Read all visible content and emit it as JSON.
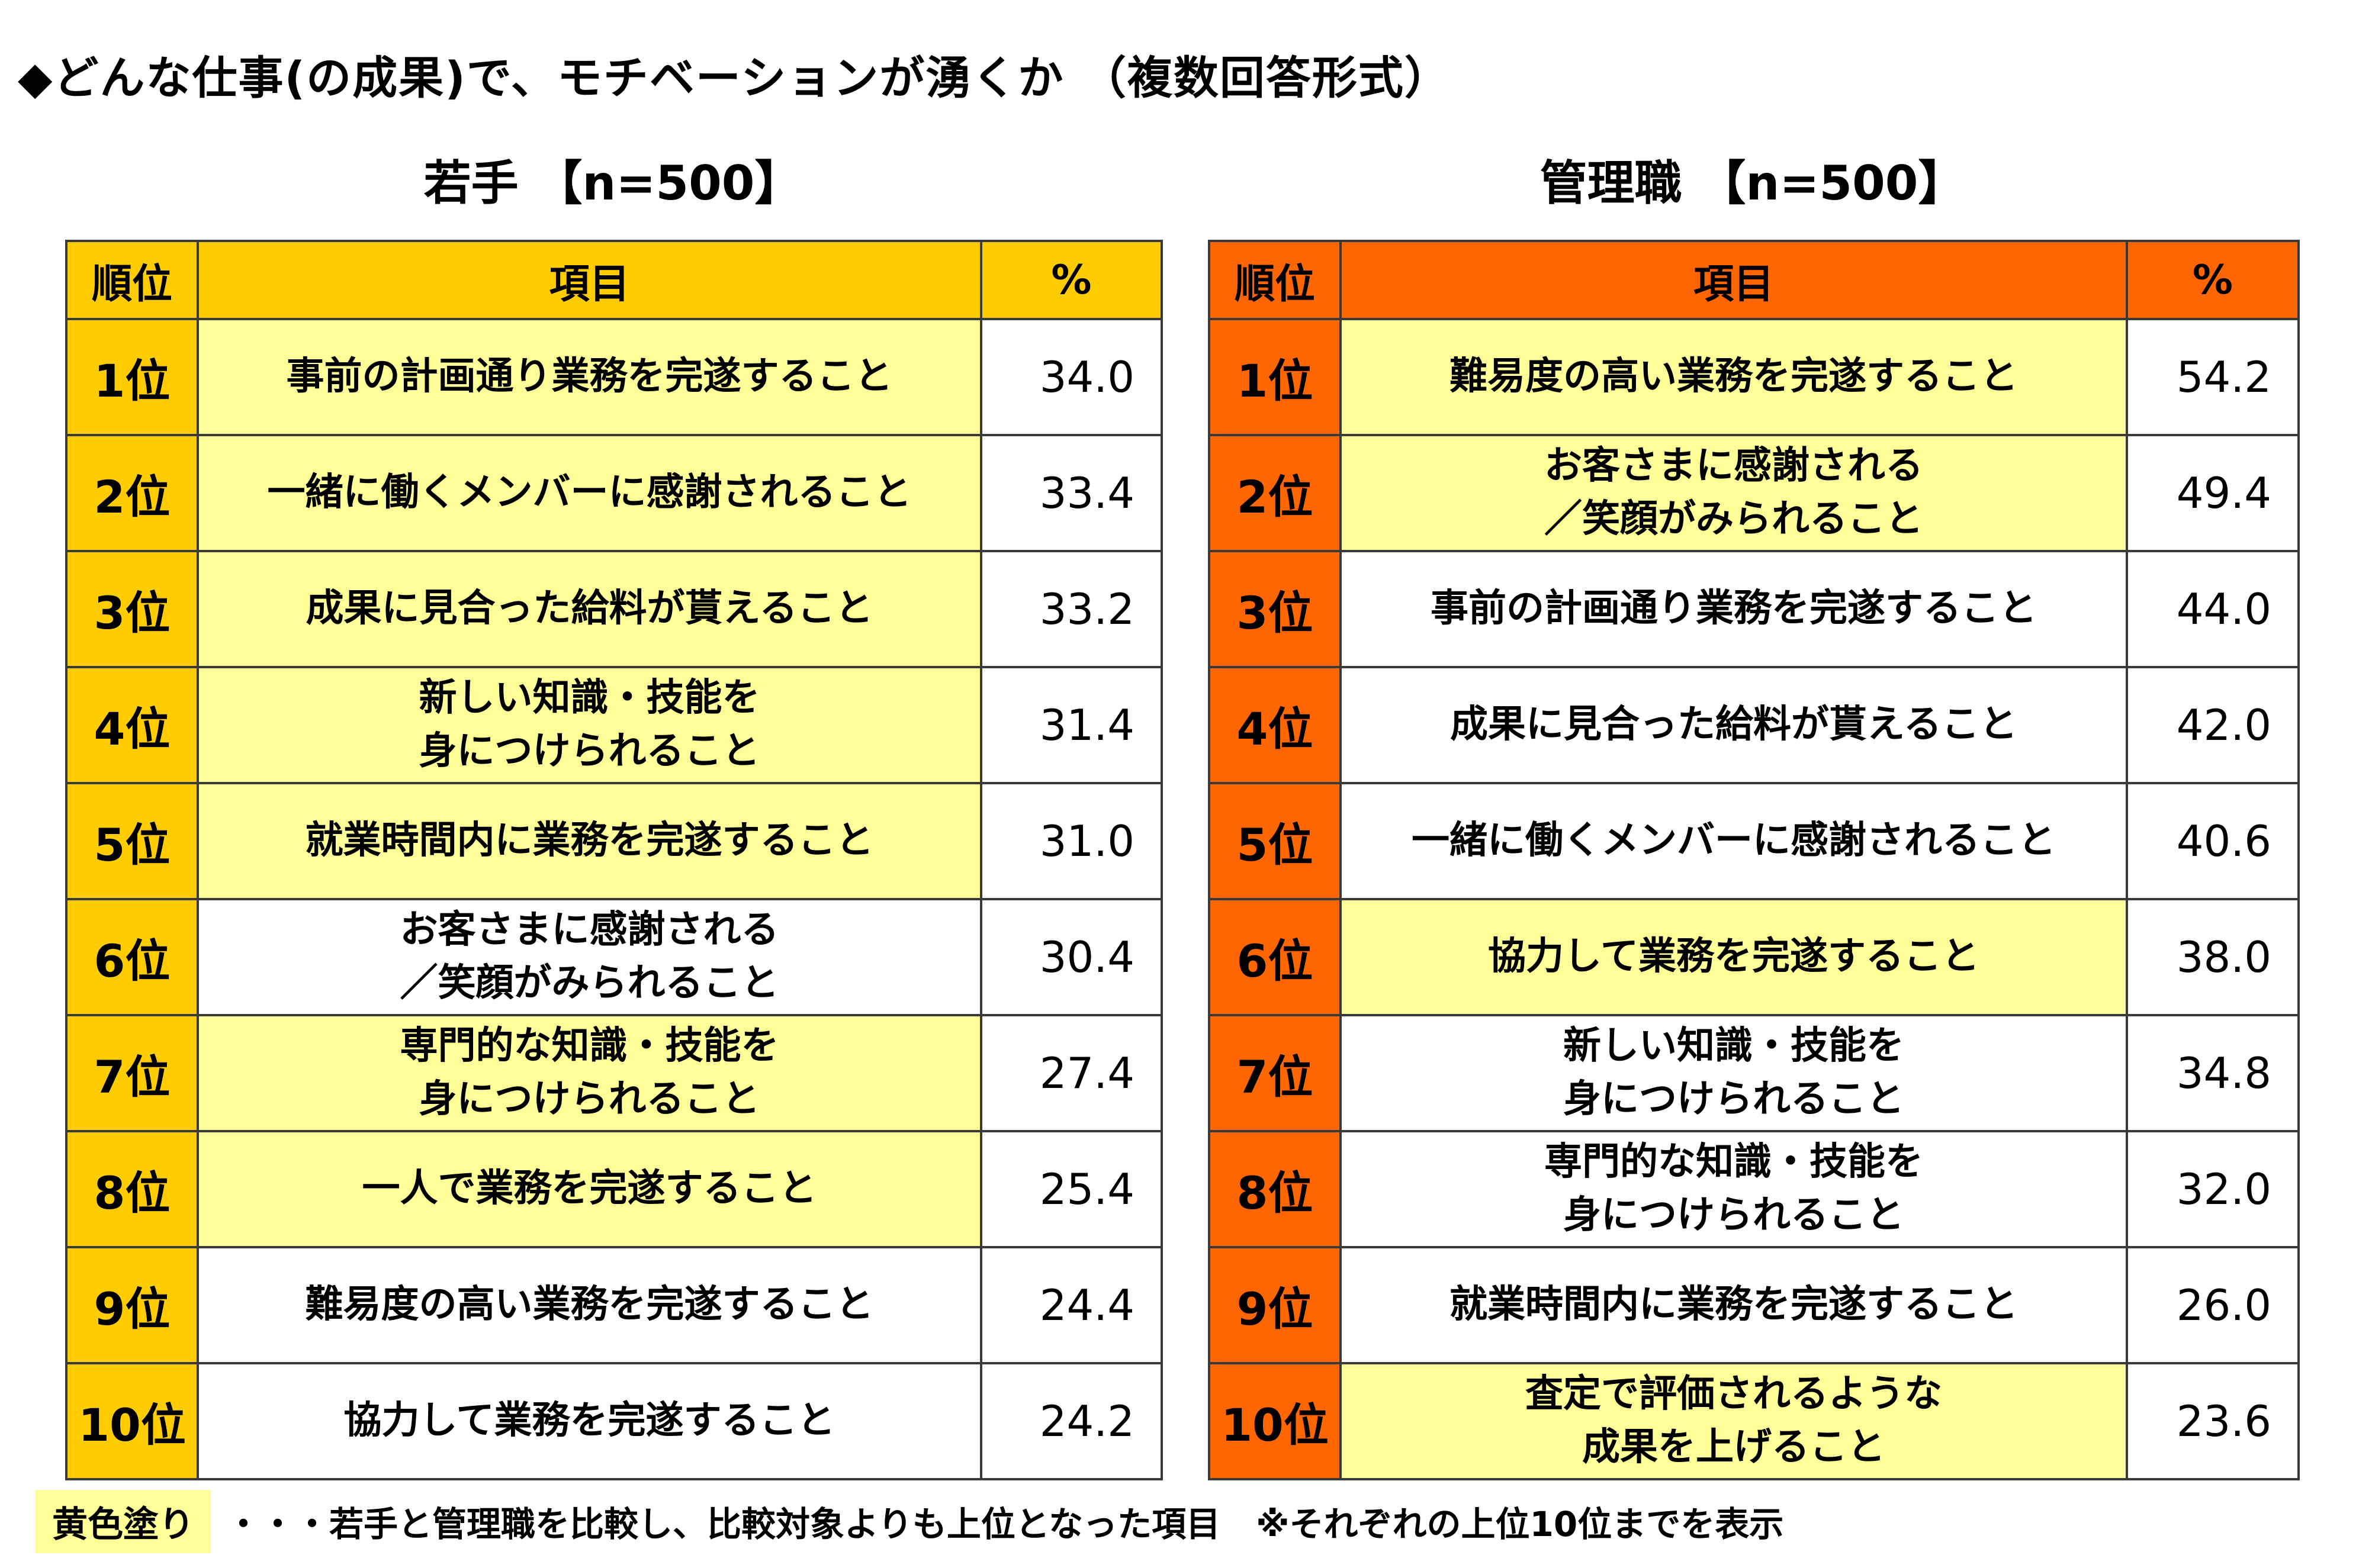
{
  "title": "◆どんな仕事(の成果)で、モチベーションが湧くか （複数回答形式）",
  "colors": {
    "young_header": "#FFCC00",
    "manager_header": "#FF6600",
    "highlight": "#FFFF99"
  },
  "chart_data": [
    {
      "type": "table",
      "title": "若手 【n=500】",
      "columns": [
        "順位",
        "項目",
        "%"
      ],
      "rows": [
        {
          "rank": "1位",
          "item": "事前の計画通り業務を完遂すること",
          "pct": "34.0",
          "highlight": true
        },
        {
          "rank": "2位",
          "item": "一緒に働くメンバーに感謝されること",
          "pct": "33.4",
          "highlight": true
        },
        {
          "rank": "3位",
          "item": "成果に見合った給料が貰えること",
          "pct": "33.2",
          "highlight": true
        },
        {
          "rank": "4位",
          "item": "新しい知識・技能を\n身につけられること",
          "pct": "31.4",
          "highlight": true
        },
        {
          "rank": "5位",
          "item": "就業時間内に業務を完遂すること",
          "pct": "31.0",
          "highlight": true
        },
        {
          "rank": "6位",
          "item": "お客さまに感謝される\n／笑顔がみられること",
          "pct": "30.4",
          "highlight": false
        },
        {
          "rank": "7位",
          "item": "専門的な知識・技能を\n身につけられること",
          "pct": "27.4",
          "highlight": true
        },
        {
          "rank": "8位",
          "item": "一人で業務を完遂すること",
          "pct": "25.4",
          "highlight": true
        },
        {
          "rank": "9位",
          "item": "難易度の高い業務を完遂すること",
          "pct": "24.4",
          "highlight": false
        },
        {
          "rank": "10位",
          "item": "協力して業務を完遂すること",
          "pct": "24.2",
          "highlight": false
        }
      ]
    },
    {
      "type": "table",
      "title": "管理職 【n=500】",
      "columns": [
        "順位",
        "項目",
        "%"
      ],
      "rows": [
        {
          "rank": "1位",
          "item": "難易度の高い業務を完遂すること",
          "pct": "54.2",
          "highlight": true
        },
        {
          "rank": "2位",
          "item": "お客さまに感謝される\n／笑顔がみられること",
          "pct": "49.4",
          "highlight": true
        },
        {
          "rank": "3位",
          "item": "事前の計画通り業務を完遂すること",
          "pct": "44.0",
          "highlight": false
        },
        {
          "rank": "4位",
          "item": "成果に見合った給料が貰えること",
          "pct": "42.0",
          "highlight": false
        },
        {
          "rank": "5位",
          "item": "一緒に働くメンバーに感謝されること",
          "pct": "40.6",
          "highlight": false
        },
        {
          "rank": "6位",
          "item": "協力して業務を完遂すること",
          "pct": "38.0",
          "highlight": true
        },
        {
          "rank": "7位",
          "item": "新しい知識・技能を\n身につけられること",
          "pct": "34.8",
          "highlight": false
        },
        {
          "rank": "8位",
          "item": "専門的な知識・技能を\n身につけられること",
          "pct": "32.0",
          "highlight": false
        },
        {
          "rank": "9位",
          "item": "就業時間内に業務を完遂すること",
          "pct": "26.0",
          "highlight": false
        },
        {
          "rank": "10位",
          "item": "査定で評価されるような\n成果を上げること",
          "pct": "23.6",
          "highlight": true
        }
      ]
    }
  ],
  "footer": {
    "legend_label": "黄色塗り",
    "legend_text": "・・・若手と管理職を比較し、比較対象よりも上位となった項目",
    "note": "※それぞれの上位10位までを表示"
  }
}
